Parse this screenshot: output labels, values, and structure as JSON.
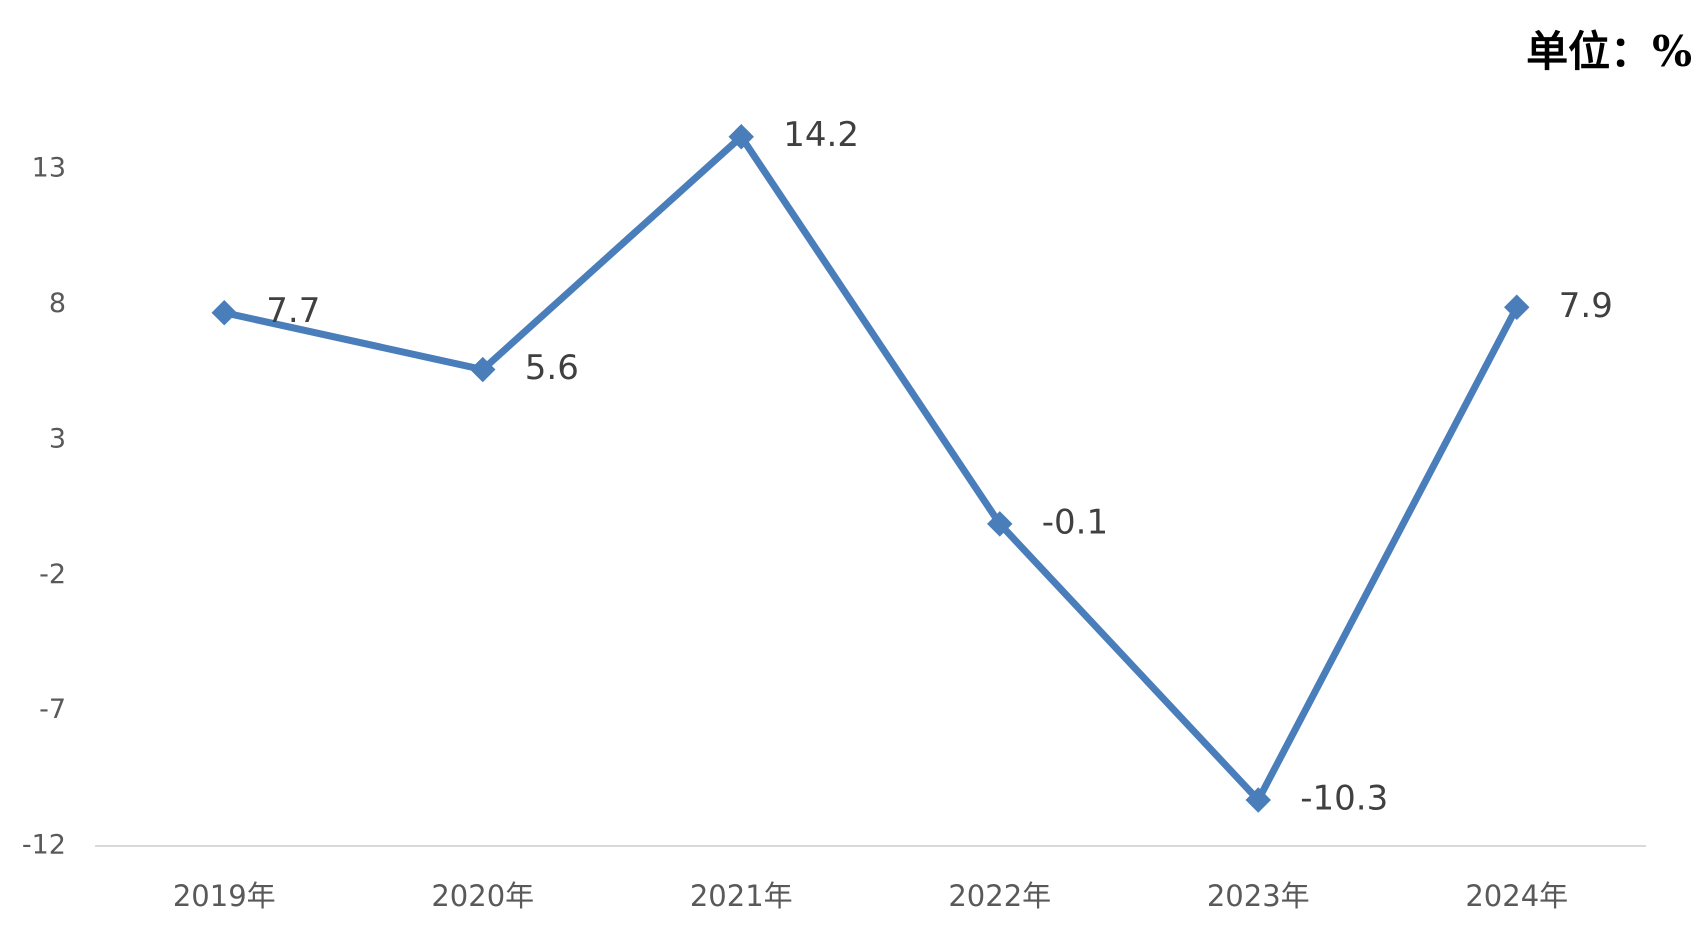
{
  "chart_data": {
    "type": "line",
    "unit": "单位：%",
    "categories": [
      "2019年",
      "2020年",
      "2021年",
      "2022年",
      "2023年",
      "2024年"
    ],
    "values": [
      7.7,
      5.6,
      14.2,
      -0.1,
      -10.3,
      7.9
    ],
    "color": "#4a7ebb",
    "ylim": [
      -12,
      16
    ],
    "yticks": [
      -12,
      -7,
      -2,
      3,
      8,
      13
    ],
    "grid": false
  }
}
